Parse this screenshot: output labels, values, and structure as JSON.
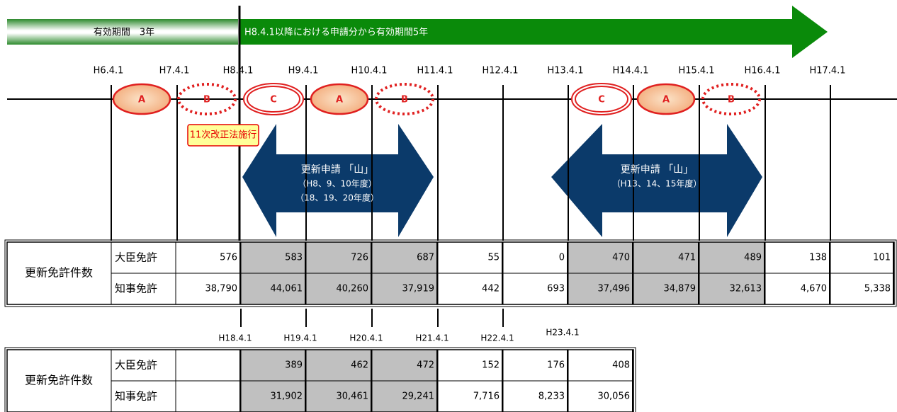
{
  "banner": {
    "left": "有効期間　3年",
    "right": "H8.4.1以降における申請分から有効期間5年"
  },
  "timeline": [
    "H6.4.1",
    "H7.4.1",
    "H8.4.1",
    "H9.4.1",
    "H10.4.1",
    "H11.4.1",
    "H12.4.1",
    "H13.4.1",
    "H14.4.1",
    "H15.4.1",
    "H16.4.1",
    "H17.4.1"
  ],
  "markers": [
    {
      "label": "A",
      "style": "filled"
    },
    {
      "label": "B",
      "style": "dashed"
    },
    {
      "label": "C",
      "style": "double"
    },
    {
      "label": "A",
      "style": "filled"
    },
    {
      "label": "B",
      "style": "dashed"
    },
    {
      "label": "C",
      "style": "double"
    },
    {
      "label": "A",
      "style": "filled"
    },
    {
      "label": "B",
      "style": "dashed"
    }
  ],
  "callout": "11次改正法施行",
  "arrows": [
    {
      "lines": [
        "更新申請 「山」",
        "（H8、9、10年度）",
        "（18、19、20年度）"
      ]
    },
    {
      "lines": [
        "更新申請 「山」",
        "（H13、14、15年度）"
      ]
    }
  ],
  "table1": {
    "label": "更新免許件数",
    "rows": [
      {
        "name": "大臣免許",
        "values": [
          "576",
          "583",
          "726",
          "687",
          "55",
          "0",
          "470",
          "471",
          "489",
          "138",
          "101"
        ]
      },
      {
        "name": "知事免許",
        "values": [
          "38,790",
          "44,061",
          "40,260",
          "37,919",
          "442",
          "693",
          "37,496",
          "34,879",
          "32,613",
          "4,670",
          "5,338"
        ]
      }
    ]
  },
  "timeline2": [
    "H18.4.1",
    "H19.4.1",
    "H20.4.1",
    "H21.4.1",
    "H22.4.1",
    "H23.4.1"
  ],
  "table2": {
    "label": "更新免許件数",
    "rows": [
      {
        "name": "大臣免許",
        "values": [
          null,
          "389",
          "462",
          "472",
          "152",
          "176",
          "408"
        ]
      },
      {
        "name": "知事免許",
        "values": [
          null,
          "31,902",
          "30,461",
          "29,241",
          "7,716",
          "8,233",
          "30,056"
        ]
      }
    ]
  }
}
